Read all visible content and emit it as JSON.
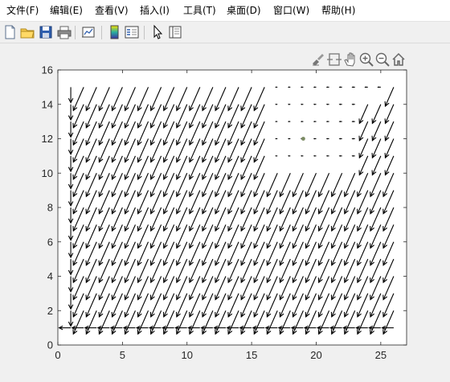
{
  "menubar": {
    "items": [
      {
        "label": "文件(F)"
      },
      {
        "label": "编辑(E)"
      },
      {
        "label": "查看(V)"
      },
      {
        "label": "插入(I)"
      },
      {
        "label": "工具(T)"
      },
      {
        "label": "桌面(D)"
      },
      {
        "label": "窗口(W)"
      },
      {
        "label": "帮助(H)"
      }
    ]
  },
  "toolbar": {
    "buttons": [
      {
        "icon": "new-figure-icon"
      },
      {
        "icon": "open-file-icon"
      },
      {
        "icon": "save-icon"
      },
      {
        "icon": "print-icon"
      },
      {
        "icon": "link-plot-icon"
      },
      {
        "icon": "insert-colorbar-icon"
      },
      {
        "icon": "insert-legend-icon"
      },
      {
        "icon": "edit-plot-pointer-icon"
      },
      {
        "icon": "property-inspector-icon"
      }
    ]
  },
  "axes_toolbar": {
    "buttons": [
      {
        "icon": "brush-icon"
      },
      {
        "icon": "data-tips-icon"
      },
      {
        "icon": "pan-hand-icon"
      },
      {
        "icon": "zoom-in-icon"
      },
      {
        "icon": "zoom-out-icon"
      },
      {
        "icon": "home-restore-icon"
      }
    ]
  },
  "colors": {
    "quiver": "#000000",
    "axes_bg": "#ffffff",
    "axes_edge": "#262626",
    "marker": "#7b8b63"
  },
  "chart_data": {
    "type": "quiver",
    "xlim": [
      0,
      27
    ],
    "ylim": [
      0,
      16
    ],
    "xticks": [
      0,
      5,
      10,
      15,
      20,
      25
    ],
    "yticks": [
      0,
      2,
      4,
      6,
      8,
      10,
      12,
      14,
      16
    ],
    "grid": {
      "x": [
        1,
        26
      ],
      "y": [
        1,
        15
      ],
      "step": 1
    },
    "dominant_vector": {
      "u": 1.0,
      "v": 1.7
    },
    "marker_point": {
      "x": 19,
      "y": 12
    },
    "sparse_region": {
      "x": [
        17,
        26
      ],
      "y": [
        11,
        15
      ]
    }
  }
}
